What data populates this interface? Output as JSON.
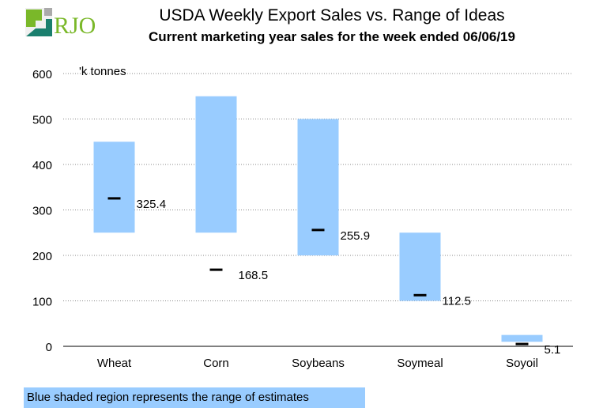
{
  "logo_text": "RJO",
  "chart_data": {
    "type": "range-bar",
    "title": "USDA Weekly Export Sales vs. Range of Ideas",
    "subtitle": "Current marketing year sales for the week ended 06/06/19",
    "ylabel": "'k tonnes",
    "ylim": [
      0,
      600
    ],
    "yticks": [
      0,
      100,
      200,
      300,
      400,
      500,
      600
    ],
    "grid": true,
    "categories": [
      "Wheat",
      "Corn",
      "Soybeans",
      "Soymeal",
      "Soyoil"
    ],
    "range_low": [
      250,
      250,
      200,
      100,
      10
    ],
    "range_high": [
      450,
      550,
      500,
      250,
      25
    ],
    "actual": [
      325.4,
      168.5,
      255.9,
      112.5,
      5.1
    ],
    "actual_labels": [
      "325.4",
      "168.5",
      "255.9",
      "112.5",
      "5.1"
    ],
    "range_color": "#99ccff",
    "note": "Blue shaded region represents the range of estimates"
  }
}
